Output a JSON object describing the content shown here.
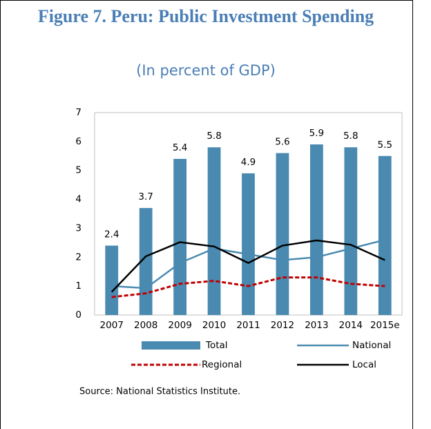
{
  "chart_data": {
    "type": "bar-line",
    "title": "Figure 7. Peru: Public Investment Spending",
    "subtitle": "(In percent of GDP)",
    "source": "Source:  National Statistics Institute.",
    "categories": [
      "2007",
      "2008",
      "2009",
      "2010",
      "2011",
      "2012",
      "2013",
      "2014",
      "2015e"
    ],
    "series": [
      {
        "name": "Total",
        "type": "bar",
        "color": "#4a8ab0",
        "values": [
          2.4,
          3.7,
          5.4,
          5.8,
          4.9,
          5.6,
          5.9,
          5.8,
          5.5
        ]
      },
      {
        "name": "National",
        "type": "line",
        "color": "#4a8ab0",
        "values": [
          1.0,
          0.93,
          1.8,
          2.3,
          2.1,
          1.9,
          2.0,
          2.3,
          2.6
        ]
      },
      {
        "name": "Regional",
        "type": "line",
        "dashed": true,
        "color": "#c00000",
        "values": [
          0.62,
          0.75,
          1.08,
          1.18,
          1.0,
          1.3,
          1.3,
          1.08,
          1.0
        ]
      },
      {
        "name": "Local",
        "type": "line",
        "color": "#000000",
        "values": [
          0.8,
          2.03,
          2.52,
          2.37,
          1.8,
          2.4,
          2.58,
          2.43,
          1.9
        ]
      }
    ],
    "ylim": [
      0,
      7
    ],
    "yticks": [
      0,
      1,
      2,
      3,
      4,
      5,
      6,
      7
    ],
    "grid": false
  }
}
